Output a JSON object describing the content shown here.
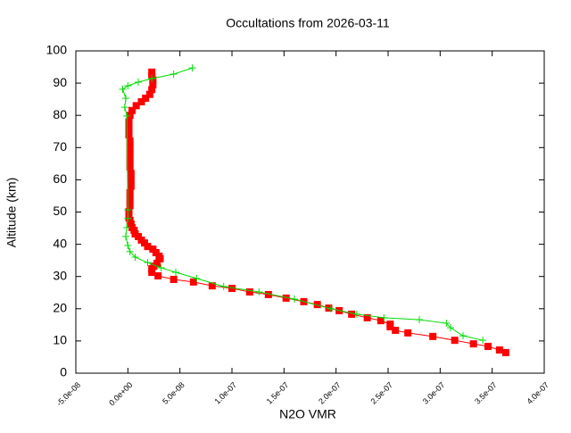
{
  "chart_data": {
    "type": "line",
    "title": "Occultations from 2026-03-11",
    "xlabel": "N2O VMR",
    "ylabel": "Altitude (km)",
    "xlim": [
      -5e-08,
      4e-07
    ],
    "ylim": [
      0,
      100
    ],
    "xticks": [
      {
        "value": -5e-08,
        "label": "-5.0e-08"
      },
      {
        "value": 0,
        "label": "0.0e+00"
      },
      {
        "value": 5e-08,
        "label": "5.0e-08"
      },
      {
        "value": 1e-07,
        "label": "1.0e-07"
      },
      {
        "value": 1.5e-07,
        "label": "1.5e-07"
      },
      {
        "value": 2e-07,
        "label": "2.0e-07"
      },
      {
        "value": 2.5e-07,
        "label": "2.5e-07"
      },
      {
        "value": 3e-07,
        "label": "3.0e-07"
      },
      {
        "value": 3.5e-07,
        "label": "3.5e-07"
      },
      {
        "value": 4e-07,
        "label": "4.0e-07"
      }
    ],
    "yticks": [
      0,
      10,
      20,
      30,
      40,
      50,
      60,
      70,
      80,
      90,
      100
    ],
    "grid": false,
    "series": [
      {
        "color": "#ff0000",
        "marker": "square",
        "x": [
          3.63e-07,
          3.57e-07,
          3.46e-07,
          3.32e-07,
          3.14e-07,
          2.93e-07,
          2.69e-07,
          2.57e-07,
          2.52e-07,
          2.52e-07,
          2.43e-07,
          2.3e-07,
          2.15e-07,
          2.03e-07,
          1.93e-07,
          1.82e-07,
          1.69e-07,
          1.52e-07,
          1.35e-07,
          1.17e-07,
          1e-07,
          8.1e-08,
          6.3e-08,
          4.4e-08,
          2.9e-08,
          2.3e-08,
          2.3e-08,
          2.5e-08,
          2.8e-08,
          3.1e-08,
          3e-08,
          2.7e-08,
          2.4e-08,
          1.9e-08,
          1.6e-08,
          1.3e-08,
          1e-08,
          7e-09,
          6e-09,
          4e-09,
          3e-09,
          2e-09,
          1e-09,
          1e-09,
          1e-09,
          2e-09,
          2e-09,
          2e-09,
          3e-09,
          3e-09,
          3e-09,
          2e-09,
          2e-09,
          2e-09,
          2e-09,
          2e-09,
          1e-09,
          1e-09,
          1e-09,
          2e-09,
          4e-09,
          8e-09,
          1.3e-08,
          1.7e-08,
          2.1e-08,
          2.3e-08,
          2.4e-08,
          2.4e-08,
          2.3e-08,
          2.3e-08
        ],
        "y": [
          6.4,
          7.2,
          8.3,
          9.1,
          10.2,
          11.4,
          12.5,
          13.3,
          14.4,
          15.2,
          16.3,
          17.2,
          18.3,
          19.4,
          20.2,
          21.3,
          22.2,
          23.3,
          24.4,
          25.2,
          26.3,
          27.1,
          28.3,
          29.1,
          30.2,
          31.3,
          32.4,
          33.2,
          34.1,
          35.5,
          36.3,
          37.4,
          38.5,
          39.3,
          40.4,
          41.3,
          42.4,
          43.2,
          44.3,
          45.2,
          46.3,
          47.4,
          48.2,
          49.3,
          50.1,
          52,
          54,
          56,
          58,
          60,
          62,
          64,
          66,
          68,
          70,
          72,
          74,
          76,
          78,
          80,
          81.5,
          83,
          84.2,
          85.3,
          86.5,
          88,
          89.5,
          91,
          92.2,
          93.4
        ]
      },
      {
        "color": "#00dd00",
        "marker": "plus",
        "x": [
          3.41e-07,
          3.22e-07,
          3.1e-07,
          3.06e-07,
          2.8e-07,
          2.46e-07,
          2.2e-07,
          1.95e-07,
          1.6e-07,
          1.26e-07,
          9.2e-08,
          6.6e-08,
          4.6e-08,
          3.2e-08,
          1.9e-08,
          7e-09,
          2e-09,
          0,
          -2e-09,
          -1e-09,
          0,
          0,
          -1e-09,
          -3e-09,
          -2e-09,
          -5e-09,
          0,
          1e-08,
          2.3e-08,
          4.4e-08,
          6.2e-08
        ],
        "y": [
          10.2,
          11.6,
          14.1,
          15.5,
          16.6,
          17.2,
          18.3,
          20,
          23,
          25.2,
          26.9,
          29.4,
          31.3,
          32.7,
          34.3,
          36,
          37.7,
          39.6,
          42.4,
          45.2,
          48,
          50.7,
          79.8,
          82.5,
          85.3,
          88.1,
          89.2,
          90.3,
          91.4,
          92.8,
          94.7
        ]
      }
    ]
  }
}
